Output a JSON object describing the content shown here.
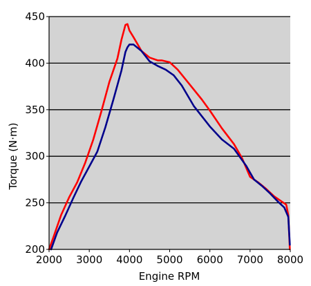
{
  "chart_data": {
    "type": "line",
    "title": "",
    "xlabel": "Engine RPM",
    "ylabel": "Torque (N·m)",
    "xlim": [
      2000,
      8000
    ],
    "ylim": [
      200,
      450
    ],
    "x_ticks": [
      2000,
      3000,
      4000,
      5000,
      6000,
      7000,
      8000
    ],
    "y_ticks": [
      200,
      250,
      300,
      350,
      400,
      450
    ],
    "x_tick_labels": [
      "2000",
      "3000",
      "4000",
      "5000",
      "6000",
      "7000",
      "8000"
    ],
    "y_tick_labels": [
      "200",
      "250",
      "300",
      "350",
      "400",
      "450"
    ],
    "grid": "horizontal",
    "legend": "none",
    "plot_background": "#d3d3d3",
    "series": [
      {
        "color": "#ff0000",
        "x": [
          2000,
          2100,
          2300,
          2500,
          2700,
          2900,
          3100,
          3300,
          3500,
          3700,
          3800,
          3900,
          3950,
          4000,
          4100,
          4300,
          4500,
          4700,
          4800,
          5000,
          5200,
          5500,
          5800,
          6000,
          6300,
          6600,
          6800,
          7000,
          7200,
          7400,
          7600,
          7800,
          7900,
          7950,
          7990
        ],
        "y": [
          200,
          212,
          237,
          256,
          272,
          293,
          318,
          348,
          380,
          405,
          425,
          441,
          442,
          435,
          428,
          413,
          406,
          403,
          403,
          401,
          393,
          377,
          361,
          349,
          330,
          313,
          298,
          278,
          272,
          265,
          257,
          251,
          248,
          237,
          200
        ]
      },
      {
        "color": "#00008b",
        "x": [
          2050,
          2200,
          2400,
          2600,
          2800,
          3000,
          3200,
          3400,
          3600,
          3800,
          3900,
          3950,
          4000,
          4100,
          4300,
          4500,
          4700,
          4900,
          5100,
          5300,
          5600,
          5800,
          6000,
          6300,
          6600,
          6900,
          7100,
          7300,
          7500,
          7700,
          7850,
          7950,
          7990
        ],
        "y": [
          200,
          218,
          236,
          255,
          273,
          289,
          305,
          331,
          361,
          392,
          412,
          417,
          420,
          420,
          413,
          402,
          397,
          393,
          387,
          376,
          354,
          343,
          332,
          318,
          308,
          290,
          275,
          268,
          260,
          251,
          245,
          235,
          205
        ]
      }
    ]
  }
}
